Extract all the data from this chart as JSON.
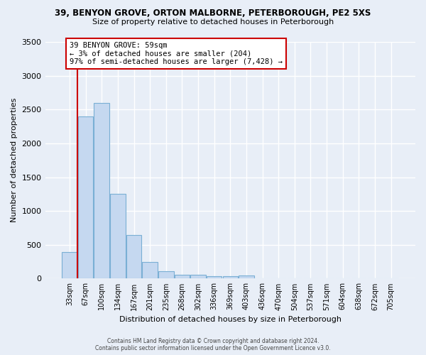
{
  "title_line1": "39, BENYON GROVE, ORTON MALBORNE, PETERBOROUGH, PE2 5XS",
  "title_line2": "Size of property relative to detached houses in Peterborough",
  "xlabel": "Distribution of detached houses by size in Peterborough",
  "ylabel": "Number of detached properties",
  "categories": [
    "33sqm",
    "67sqm",
    "100sqm",
    "134sqm",
    "167sqm",
    "201sqm",
    "235sqm",
    "268sqm",
    "302sqm",
    "336sqm",
    "369sqm",
    "403sqm",
    "436sqm",
    "470sqm",
    "504sqm",
    "537sqm",
    "571sqm",
    "604sqm",
    "638sqm",
    "672sqm",
    "705sqm"
  ],
  "values": [
    390,
    2400,
    2600,
    1250,
    640,
    250,
    110,
    60,
    55,
    40,
    35,
    50,
    0,
    0,
    0,
    0,
    0,
    0,
    0,
    0,
    0
  ],
  "bar_color": "#c5d8f0",
  "bar_edge_color": "#7aafd4",
  "highlight_line_color": "#cc0000",
  "annotation_box_text": "39 BENYON GROVE: 59sqm\n← 3% of detached houses are smaller (204)\n97% of semi-detached houses are larger (7,428) →",
  "annotation_box_color": "#cc0000",
  "annotation_box_fill": "#ffffff",
  "ylim": [
    0,
    3500
  ],
  "yticks": [
    0,
    500,
    1000,
    1500,
    2000,
    2500,
    3000,
    3500
  ],
  "background_color": "#e8eef7",
  "grid_color": "#ffffff",
  "footer_line1": "Contains HM Land Registry data © Crown copyright and database right 2024.",
  "footer_line2": "Contains public sector information licensed under the Open Government Licence v3.0."
}
